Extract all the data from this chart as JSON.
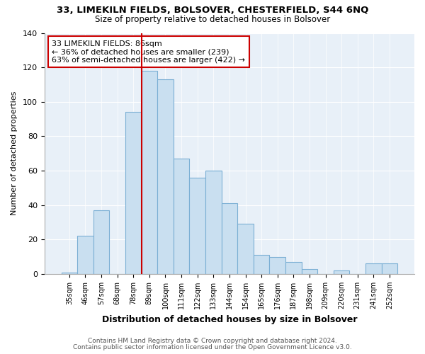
{
  "title1": "33, LIMEKILN FIELDS, BOLSOVER, CHESTERFIELD, S44 6NQ",
  "title2": "Size of property relative to detached houses in Bolsover",
  "xlabel": "Distribution of detached houses by size in Bolsover",
  "ylabel": "Number of detached properties",
  "bar_labels": [
    "35sqm",
    "46sqm",
    "57sqm",
    "68sqm",
    "78sqm",
    "89sqm",
    "100sqm",
    "111sqm",
    "122sqm",
    "133sqm",
    "144sqm",
    "154sqm",
    "165sqm",
    "176sqm",
    "187sqm",
    "198sqm",
    "209sqm",
    "220sqm",
    "231sqm",
    "241sqm",
    "252sqm"
  ],
  "bar_values": [
    1,
    22,
    37,
    0,
    94,
    118,
    113,
    67,
    56,
    60,
    41,
    29,
    11,
    10,
    7,
    3,
    0,
    2,
    0,
    6,
    6
  ],
  "bar_color": "#c9dff0",
  "bar_edge_color": "#7bafd4",
  "vline_color": "#cc0000",
  "annotation_title": "33 LIMEKILN FIELDS: 86sqm",
  "annotation_line1": "← 36% of detached houses are smaller (239)",
  "annotation_line2": "63% of semi-detached houses are larger (422) →",
  "annotation_box_color": "white",
  "annotation_box_edge": "#cc0000",
  "ylim": [
    0,
    140
  ],
  "yticks": [
    0,
    20,
    40,
    60,
    80,
    100,
    120,
    140
  ],
  "footer1": "Contains HM Land Registry data © Crown copyright and database right 2024.",
  "footer2": "Contains public sector information licensed under the Open Government Licence v3.0.",
  "background_color": "#ffffff",
  "plot_bg_color": "#e8f0f8",
  "grid_color": "#ffffff"
}
